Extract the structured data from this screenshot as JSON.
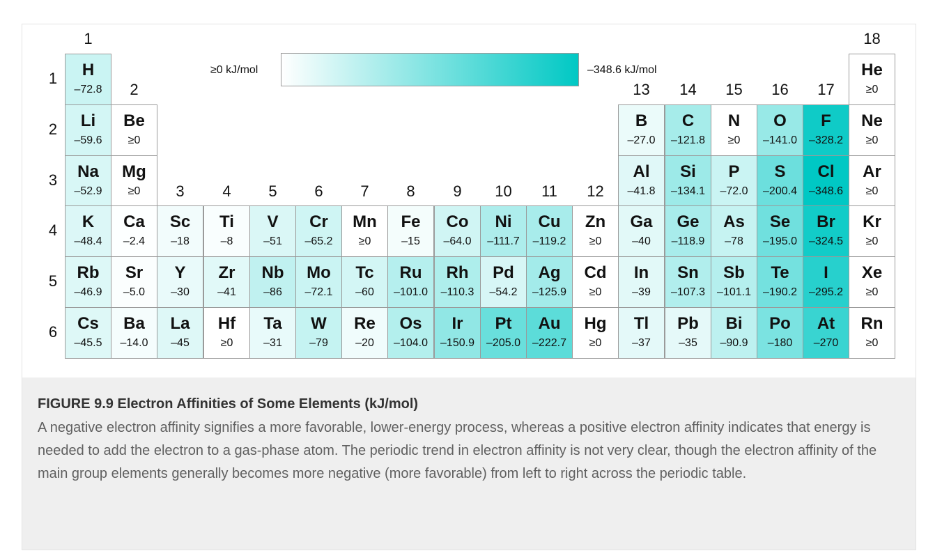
{
  "group_labels": [
    {
      "label": "1",
      "group": 1,
      "row": 0
    },
    {
      "label": "18",
      "group": 18,
      "row": 0
    },
    {
      "label": "2",
      "group": 2,
      "row": 1
    },
    {
      "label": "13",
      "group": 13,
      "row": 1
    },
    {
      "label": "14",
      "group": 14,
      "row": 1
    },
    {
      "label": "15",
      "group": 15,
      "row": 1
    },
    {
      "label": "16",
      "group": 16,
      "row": 1
    },
    {
      "label": "17",
      "group": 17,
      "row": 1
    },
    {
      "label": "3",
      "group": 3,
      "row": 3
    },
    {
      "label": "4",
      "group": 4,
      "row": 3
    },
    {
      "label": "5",
      "group": 5,
      "row": 3
    },
    {
      "label": "6",
      "group": 6,
      "row": 3
    },
    {
      "label": "7",
      "group": 7,
      "row": 3
    },
    {
      "label": "8",
      "group": 8,
      "row": 3
    },
    {
      "label": "9",
      "group": 9,
      "row": 3
    },
    {
      "label": "10",
      "group": 10,
      "row": 3
    },
    {
      "label": "11",
      "group": 11,
      "row": 3
    },
    {
      "label": "12",
      "group": 12,
      "row": 3
    }
  ],
  "period_labels": [
    "1",
    "2",
    "3",
    "4",
    "5",
    "6"
  ],
  "legend": {
    "min_label": "≥0 kJ/mol",
    "max_label": "–348.6 kJ/mol",
    "min_color": "#ffffff",
    "max_color": "#00c8c4",
    "max_value": 348.6
  },
  "elements": [
    {
      "symbol": "H",
      "value": "–72.8",
      "ea": -72.8,
      "period": 1,
      "group": 1
    },
    {
      "symbol": "He",
      "value": "≥0",
      "ea": 0,
      "period": 1,
      "group": 18
    },
    {
      "symbol": "Li",
      "value": "–59.6",
      "ea": -59.6,
      "period": 2,
      "group": 1
    },
    {
      "symbol": "Be",
      "value": "≥0",
      "ea": 0,
      "period": 2,
      "group": 2
    },
    {
      "symbol": "B",
      "value": "–27.0",
      "ea": -27.0,
      "period": 2,
      "group": 13
    },
    {
      "symbol": "C",
      "value": "–121.8",
      "ea": -121.8,
      "period": 2,
      "group": 14
    },
    {
      "symbol": "N",
      "value": "≥0",
      "ea": 0,
      "period": 2,
      "group": 15
    },
    {
      "symbol": "O",
      "value": "–141.0",
      "ea": -141.0,
      "period": 2,
      "group": 16
    },
    {
      "symbol": "F",
      "value": "–328.2",
      "ea": -328.2,
      "period": 2,
      "group": 17
    },
    {
      "symbol": "Ne",
      "value": "≥0",
      "ea": 0,
      "period": 2,
      "group": 18
    },
    {
      "symbol": "Na",
      "value": "–52.9",
      "ea": -52.9,
      "period": 3,
      "group": 1
    },
    {
      "symbol": "Mg",
      "value": "≥0",
      "ea": 0,
      "period": 3,
      "group": 2
    },
    {
      "symbol": "Al",
      "value": "–41.8",
      "ea": -41.8,
      "period": 3,
      "group": 13
    },
    {
      "symbol": "Si",
      "value": "–134.1",
      "ea": -134.1,
      "period": 3,
      "group": 14
    },
    {
      "symbol": "P",
      "value": "–72.0",
      "ea": -72.0,
      "period": 3,
      "group": 15
    },
    {
      "symbol": "S",
      "value": "–200.4",
      "ea": -200.4,
      "period": 3,
      "group": 16
    },
    {
      "symbol": "Cl",
      "value": "–348.6",
      "ea": -348.6,
      "period": 3,
      "group": 17
    },
    {
      "symbol": "Ar",
      "value": "≥0",
      "ea": 0,
      "period": 3,
      "group": 18
    },
    {
      "symbol": "K",
      "value": "–48.4",
      "ea": -48.4,
      "period": 4,
      "group": 1
    },
    {
      "symbol": "Ca",
      "value": "–2.4",
      "ea": -2.4,
      "period": 4,
      "group": 2
    },
    {
      "symbol": "Sc",
      "value": "–18",
      "ea": -18,
      "period": 4,
      "group": 3
    },
    {
      "symbol": "Ti",
      "value": "–8",
      "ea": -8,
      "period": 4,
      "group": 4
    },
    {
      "symbol": "V",
      "value": "–51",
      "ea": -51,
      "period": 4,
      "group": 5
    },
    {
      "symbol": "Cr",
      "value": "–65.2",
      "ea": -65.2,
      "period": 4,
      "group": 6
    },
    {
      "symbol": "Mn",
      "value": "≥0",
      "ea": 0,
      "period": 4,
      "group": 7
    },
    {
      "symbol": "Fe",
      "value": "–15",
      "ea": -15,
      "period": 4,
      "group": 8
    },
    {
      "symbol": "Co",
      "value": "–64.0",
      "ea": -64.0,
      "period": 4,
      "group": 9
    },
    {
      "symbol": "Ni",
      "value": "–111.7",
      "ea": -111.7,
      "period": 4,
      "group": 10
    },
    {
      "symbol": "Cu",
      "value": "–119.2",
      "ea": -119.2,
      "period": 4,
      "group": 11
    },
    {
      "symbol": "Zn",
      "value": "≥0",
      "ea": 0,
      "period": 4,
      "group": 12
    },
    {
      "symbol": "Ga",
      "value": "–40",
      "ea": -40,
      "period": 4,
      "group": 13
    },
    {
      "symbol": "Ge",
      "value": "–118.9",
      "ea": -118.9,
      "period": 4,
      "group": 14
    },
    {
      "symbol": "As",
      "value": "–78",
      "ea": -78,
      "period": 4,
      "group": 15
    },
    {
      "symbol": "Se",
      "value": "–195.0",
      "ea": -195.0,
      "period": 4,
      "group": 16
    },
    {
      "symbol": "Br",
      "value": "–324.5",
      "ea": -324.5,
      "period": 4,
      "group": 17
    },
    {
      "symbol": "Kr",
      "value": "≥0",
      "ea": 0,
      "period": 4,
      "group": 18
    },
    {
      "symbol": "Rb",
      "value": "–46.9",
      "ea": -46.9,
      "period": 5,
      "group": 1
    },
    {
      "symbol": "Sr",
      "value": "–5.0",
      "ea": -5.0,
      "period": 5,
      "group": 2
    },
    {
      "symbol": "Y",
      "value": "–30",
      "ea": -30,
      "period": 5,
      "group": 3
    },
    {
      "symbol": "Zr",
      "value": "–41",
      "ea": -41,
      "period": 5,
      "group": 4
    },
    {
      "symbol": "Nb",
      "value": "–86",
      "ea": -86,
      "period": 5,
      "group": 5
    },
    {
      "symbol": "Mo",
      "value": "–72.1",
      "ea": -72.1,
      "period": 5,
      "group": 6
    },
    {
      "symbol": "Tc",
      "value": "–60",
      "ea": -60,
      "period": 5,
      "group": 7
    },
    {
      "symbol": "Ru",
      "value": "–101.0",
      "ea": -101.0,
      "period": 5,
      "group": 8
    },
    {
      "symbol": "Rh",
      "value": "–110.3",
      "ea": -110.3,
      "period": 5,
      "group": 9
    },
    {
      "symbol": "Pd",
      "value": "–54.2",
      "ea": -54.2,
      "period": 5,
      "group": 10
    },
    {
      "symbol": "Ag",
      "value": "–125.9",
      "ea": -125.9,
      "period": 5,
      "group": 11
    },
    {
      "symbol": "Cd",
      "value": "≥0",
      "ea": 0,
      "period": 5,
      "group": 12
    },
    {
      "symbol": "In",
      "value": "–39",
      "ea": -39,
      "period": 5,
      "group": 13
    },
    {
      "symbol": "Sn",
      "value": "–107.3",
      "ea": -107.3,
      "period": 5,
      "group": 14
    },
    {
      "symbol": "Sb",
      "value": "–101.1",
      "ea": -101.1,
      "period": 5,
      "group": 15
    },
    {
      "symbol": "Te",
      "value": "–190.2",
      "ea": -190.2,
      "period": 5,
      "group": 16
    },
    {
      "symbol": "I",
      "value": "–295.2",
      "ea": -295.2,
      "period": 5,
      "group": 17
    },
    {
      "symbol": "Xe",
      "value": "≥0",
      "ea": 0,
      "period": 5,
      "group": 18
    },
    {
      "symbol": "Cs",
      "value": "–45.5",
      "ea": -45.5,
      "period": 6,
      "group": 1
    },
    {
      "symbol": "Ba",
      "value": "–14.0",
      "ea": -14.0,
      "period": 6,
      "group": 2
    },
    {
      "symbol": "La",
      "value": "–45",
      "ea": -45,
      "period": 6,
      "group": 3
    },
    {
      "symbol": "Hf",
      "value": "≥0",
      "ea": 0,
      "period": 6,
      "group": 4
    },
    {
      "symbol": "Ta",
      "value": "–31",
      "ea": -31,
      "period": 6,
      "group": 5
    },
    {
      "symbol": "W",
      "value": "–79",
      "ea": -79,
      "period": 6,
      "group": 6
    },
    {
      "symbol": "Re",
      "value": "–20",
      "ea": -20,
      "period": 6,
      "group": 7
    },
    {
      "symbol": "Os",
      "value": "–104.0",
      "ea": -104.0,
      "period": 6,
      "group": 8
    },
    {
      "symbol": "Ir",
      "value": "–150.9",
      "ea": -150.9,
      "period": 6,
      "group": 9
    },
    {
      "symbol": "Pt",
      "value": "–205.0",
      "ea": -205.0,
      "period": 6,
      "group": 10
    },
    {
      "symbol": "Au",
      "value": "–222.7",
      "ea": -222.7,
      "period": 6,
      "group": 11
    },
    {
      "symbol": "Hg",
      "value": "≥0",
      "ea": 0,
      "period": 6,
      "group": 12
    },
    {
      "symbol": "Tl",
      "value": "–37",
      "ea": -37,
      "period": 6,
      "group": 13
    },
    {
      "symbol": "Pb",
      "value": "–35",
      "ea": -35,
      "period": 6,
      "group": 14
    },
    {
      "symbol": "Bi",
      "value": "–90.9",
      "ea": -90.9,
      "period": 6,
      "group": 15
    },
    {
      "symbol": "Po",
      "value": "–180",
      "ea": -180,
      "period": 6,
      "group": 16
    },
    {
      "symbol": "At",
      "value": "–270",
      "ea": -270,
      "period": 6,
      "group": 17
    },
    {
      "symbol": "Rn",
      "value": "≥0",
      "ea": 0,
      "period": 6,
      "group": 18
    }
  ],
  "caption": {
    "title": "FIGURE 9.9 Electron Affinities of Some Elements (kJ/mol)",
    "text": "A negative electron affinity signifies a more favorable, lower-energy process, whereas a positive electron affinity indicates that energy is needed to add the electron to a gas-phase atom. The periodic trend in electron affinity is not very clear, though the electron affinity of the main group elements generally becomes more negative (more favorable) from left to right across the periodic table."
  }
}
